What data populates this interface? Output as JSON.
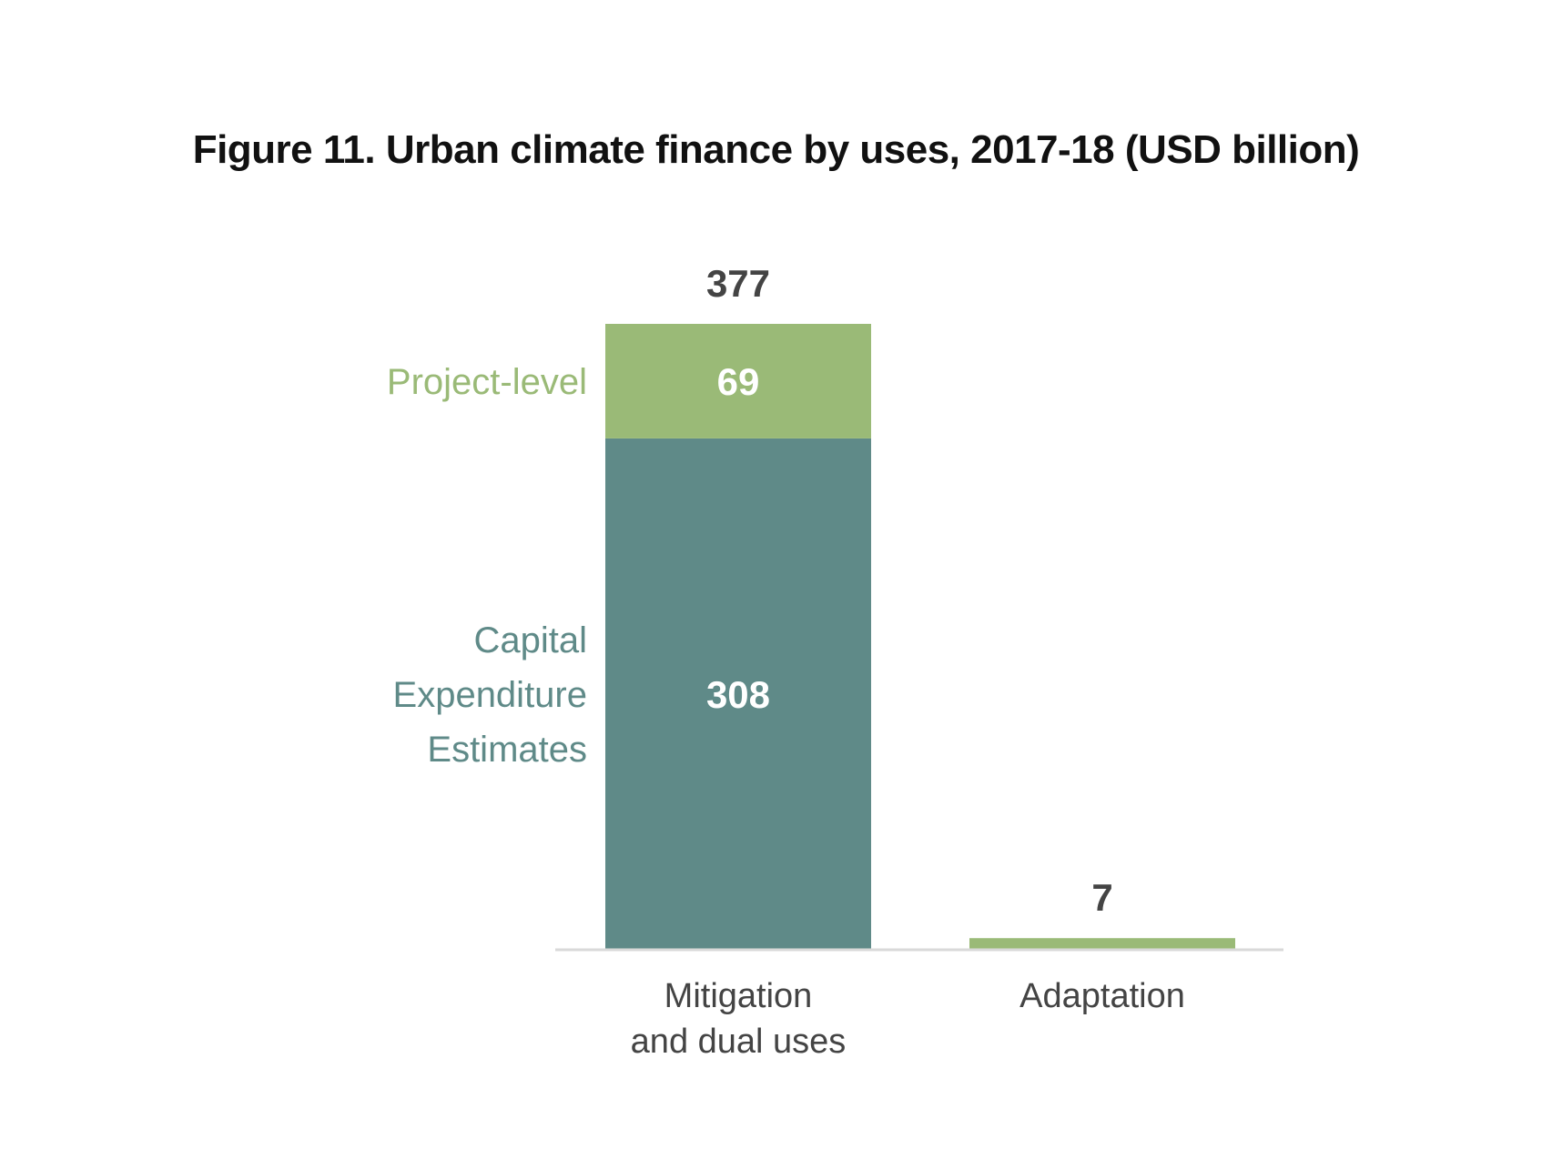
{
  "chart_data": {
    "type": "bar",
    "stacked": true,
    "title": "Figure 11. Urban climate finance by uses, 2017-18 (USD billion)",
    "categories": [
      [
        "Mitigation",
        "and dual uses"
      ],
      [
        "Adaptation"
      ]
    ],
    "series": [
      {
        "name": [
          "Capital",
          "Expenditure",
          "Estimates"
        ],
        "color": "#5f8a88",
        "values": [
          308,
          0
        ]
      },
      {
        "name": [
          "Project-level"
        ],
        "color": "#9aba77",
        "values": [
          69,
          7
        ]
      }
    ],
    "totals": [
      377,
      7
    ],
    "ylim": [
      0,
      377
    ],
    "grid": false,
    "legend": "inline-left",
    "axis_color": "#d9d9d9",
    "label_color": "#444444",
    "inner_label_color": "#ffffff"
  }
}
